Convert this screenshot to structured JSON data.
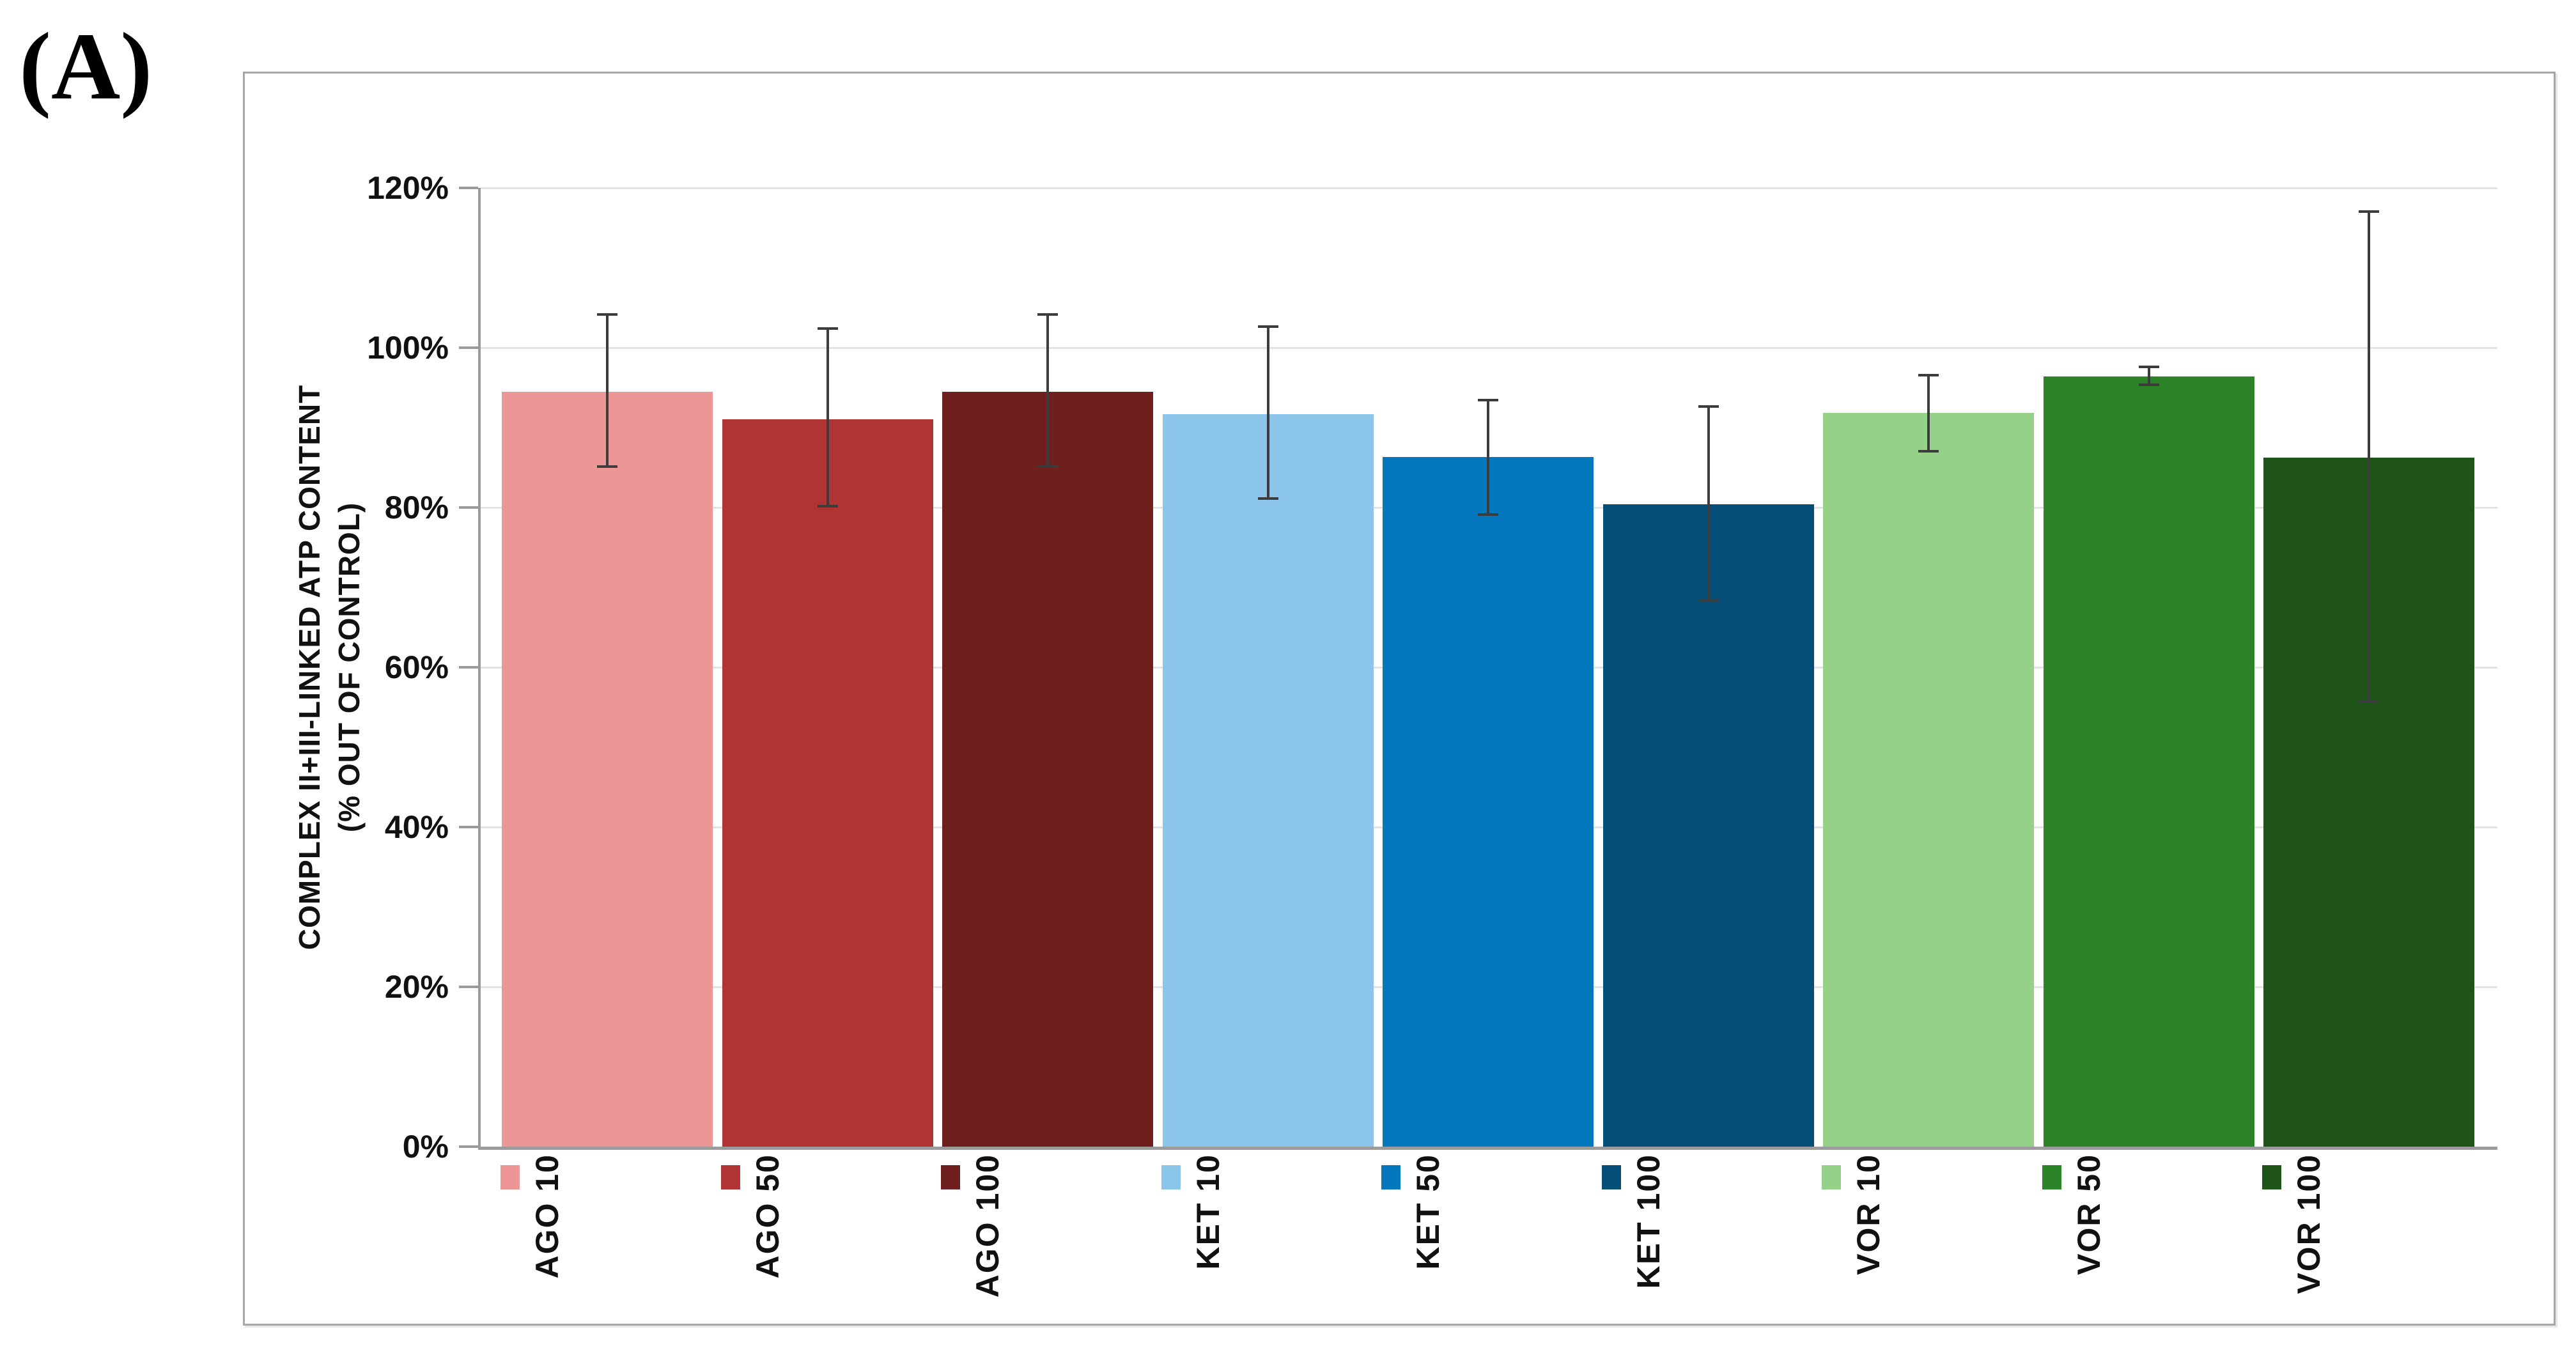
{
  "panel_label": "(A)",
  "chart_data": {
    "type": "bar",
    "title": "",
    "ylabel_line1": "COMPLEX II+III-LINKED ATP CONTENT",
    "ylabel_line2": "(% OUT OF CONTROL)",
    "y_axis": {
      "min": 0,
      "max": 120,
      "step": 20,
      "tick_labels": [
        "0%",
        "20%",
        "40%",
        "60%",
        "80%",
        "100%",
        "120%"
      ]
    },
    "grid": true,
    "legend_position": "per-bar-below-axis",
    "categories": [
      "AGO 10",
      "AGO 50",
      "AGO 100",
      "KET 10",
      "KET 50",
      "KET 100",
      "VOR 10",
      "VOR 50",
      "VOR 100"
    ],
    "bars": [
      {
        "label": "AGO 10",
        "value": 94.5,
        "err_high": 104.3,
        "err_low": 85.0,
        "color": "#EC9795"
      },
      {
        "label": "AGO 50",
        "value": 91.0,
        "err_high": 102.6,
        "err_low": 80.0,
        "color": "#B03433"
      },
      {
        "label": "AGO 100",
        "value": 94.5,
        "err_high": 104.3,
        "err_low": 85.0,
        "color": "#701F1F"
      },
      {
        "label": "KET 10",
        "value": 91.7,
        "err_high": 102.8,
        "err_low": 81.0,
        "color": "#8CC5EA"
      },
      {
        "label": "KET 50",
        "value": 86.3,
        "err_high": 93.6,
        "err_low": 79.0,
        "color": "#0577BC"
      },
      {
        "label": "KET 100",
        "value": 80.4,
        "err_high": 92.8,
        "err_low": 68.2,
        "color": "#054E78"
      },
      {
        "label": "VOR 10",
        "value": 91.8,
        "err_high": 96.7,
        "err_low": 86.9,
        "color": "#95D189"
      },
      {
        "label": "VOR 50",
        "value": 96.4,
        "err_high": 97.8,
        "err_low": 95.2,
        "color": "#2D8328"
      },
      {
        "label": "VOR 100",
        "value": 86.2,
        "err_high": 117.2,
        "err_low": 55.5,
        "color": "#1F5418"
      }
    ],
    "error_bar_color": "#3C3C3C",
    "gridline_color": "#E3E3E3",
    "axis_color": "#9B9B9B"
  }
}
